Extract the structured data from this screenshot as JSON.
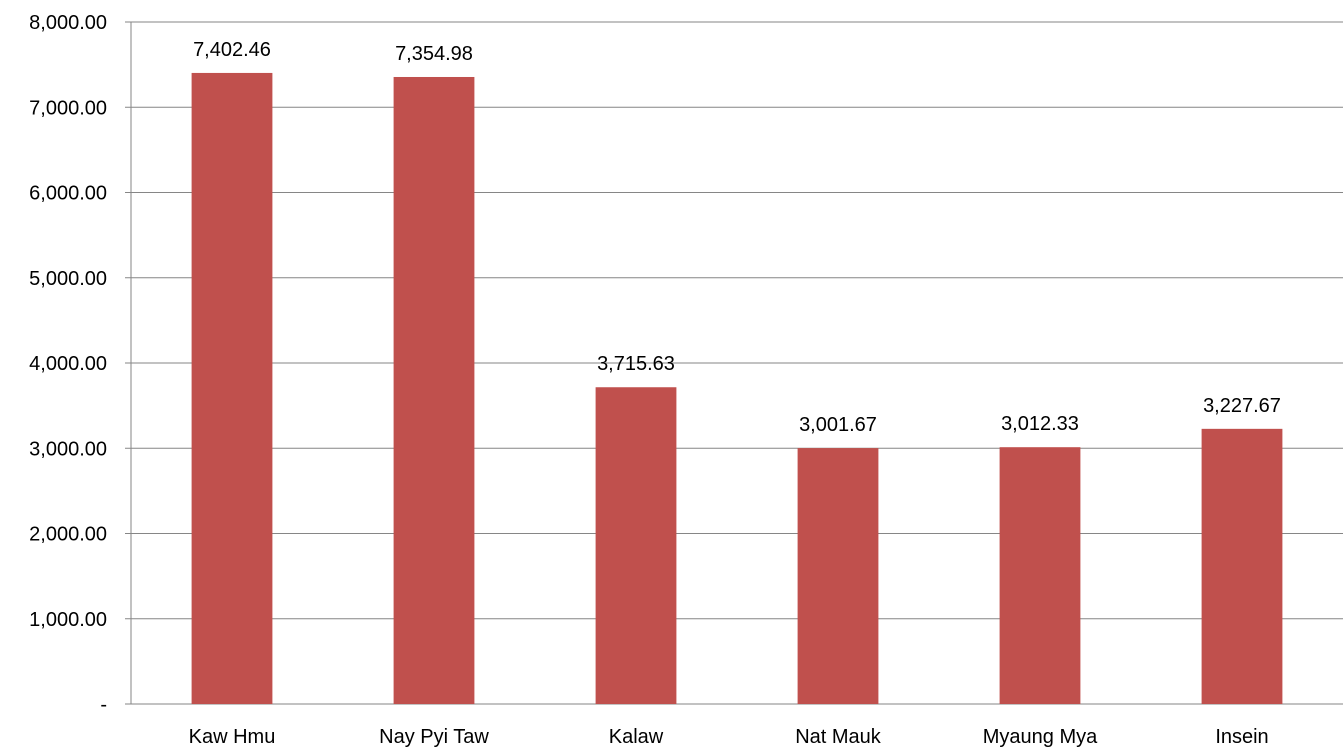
{
  "chart_data": {
    "type": "bar",
    "categories": [
      "Kaw Hmu",
      "Nay Pyi Taw",
      "Kalaw",
      "Nat Mauk",
      "Myaung Mya",
      "Insein"
    ],
    "values": [
      7402.46,
      7354.98,
      3715.63,
      3001.67,
      3012.33,
      3227.67
    ],
    "value_labels": [
      "7,402.46",
      "7,354.98",
      "3,715.63",
      "3,001.67",
      "3,012.33",
      "3,227.67"
    ],
    "y_ticks": [
      0,
      1000,
      2000,
      3000,
      4000,
      5000,
      6000,
      7000,
      8000
    ],
    "y_tick_labels": [
      "-",
      "1,000.00",
      "2,000.00",
      "3,000.00",
      "4,000.00",
      "5,000.00",
      "6,000.00",
      "7,000.00",
      "8,000.00"
    ],
    "ylim": [
      0,
      8000
    ],
    "grid": true,
    "legend": "none",
    "bar_color": "#C0504D",
    "title": "",
    "xlabel": "",
    "ylabel": ""
  }
}
